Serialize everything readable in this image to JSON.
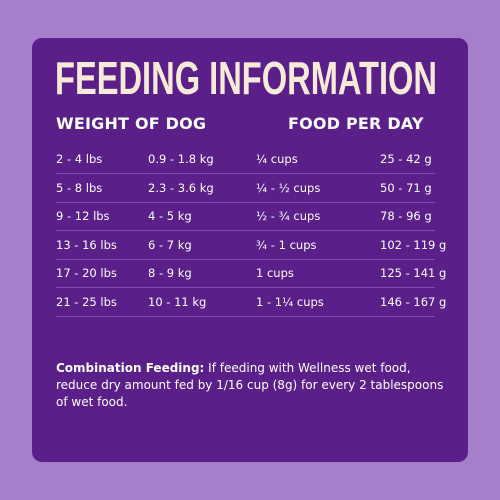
{
  "header": {
    "title": "FEEDING INFORMATION"
  },
  "table": {
    "columns": [
      "WEIGHT OF DOG",
      "FOOD PER DAY"
    ],
    "rows": [
      [
        "2 - 4 lbs",
        "0.9 - 1.8 kg",
        "¼ cups",
        "25 - 42 g"
      ],
      [
        "5 - 8 lbs",
        "2.3 - 3.6 kg",
        "¼ - ½ cups",
        "50 - 71 g"
      ],
      [
        "9 - 12 lbs",
        "4 - 5 kg",
        "½ - ¾ cups",
        "78 - 96 g"
      ],
      [
        "13 - 16 lbs",
        "6 - 7 kg",
        "¾ - 1 cups",
        "102 - 119 g"
      ],
      [
        "17 - 20 lbs",
        "8 - 9 kg",
        "1 cups",
        "125 - 141 g"
      ],
      [
        "21 - 25 lbs",
        "10 - 11 kg",
        "1 - 1¼ cups",
        "146 - 167 g"
      ]
    ]
  },
  "note": {
    "label": "Combination Feeding:",
    "text": "If feeding with Wellness wet food, reduce dry amount fed by 1/16 cup (8g) for every 2 tablespoons of wet food."
  }
}
